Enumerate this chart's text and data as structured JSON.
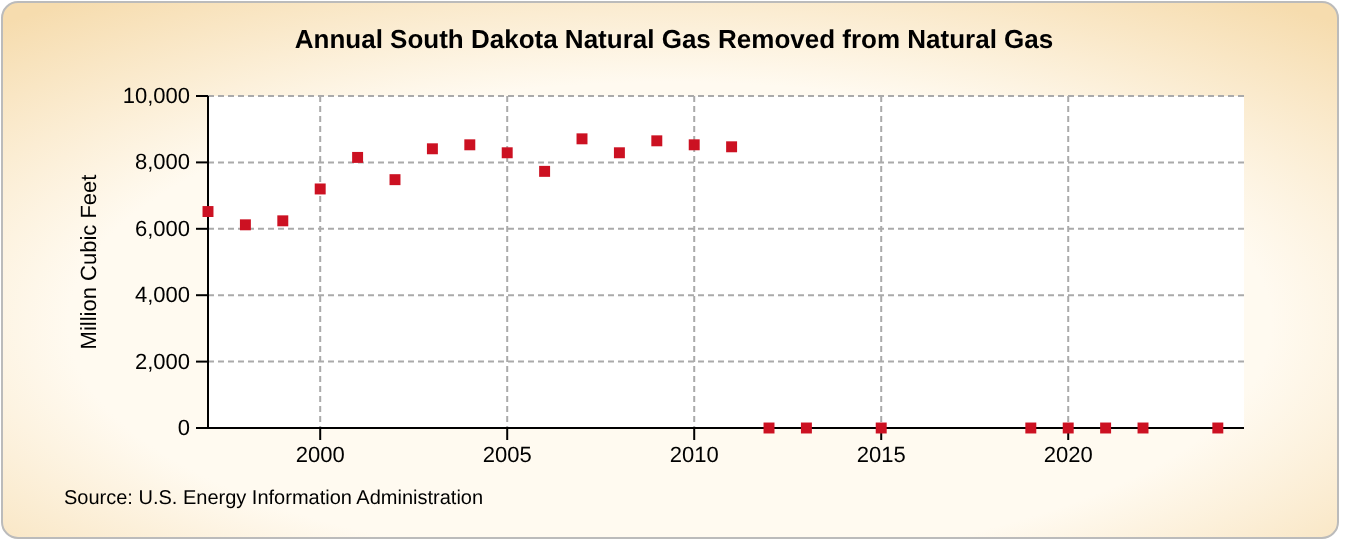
{
  "chart_data": {
    "type": "scatter",
    "title": "Annual South Dakota Natural Gas Removed from Natural Gas",
    "ylabel": "Million Cubic Feet",
    "x": [
      1997,
      1998,
      1999,
      2000,
      2001,
      2002,
      2003,
      2004,
      2005,
      2006,
      2007,
      2008,
      2009,
      2010,
      2011,
      2012,
      2013,
      2015,
      2019,
      2020,
      2021,
      2022,
      2024
    ],
    "series": [
      {
        "color": "#cc1122",
        "values": [
          6520,
          6120,
          6240,
          7200,
          8150,
          7480,
          8410,
          8530,
          8290,
          7730,
          8710,
          8290,
          8650,
          8530,
          8470,
          0,
          0,
          0,
          0,
          0,
          0,
          0,
          0
        ]
      }
    ],
    "xlim": [
      1997,
      2024.7
    ],
    "xticks": [
      2000,
      2005,
      2010,
      2015,
      2020
    ],
    "ylim": [
      0,
      10000
    ],
    "yticks": [
      {
        "value": 0,
        "label": "0"
      },
      {
        "value": 2000,
        "label": "2,000"
      },
      {
        "value": 4000,
        "label": "4,000"
      },
      {
        "value": 6000,
        "label": "6,000"
      },
      {
        "value": 8000,
        "label": "8,000"
      },
      {
        "value": 10000,
        "label": "10,000"
      }
    ],
    "grid": true,
    "marker": "square",
    "annotations": [
      "Source: U.S. Energy Information Administration"
    ]
  }
}
